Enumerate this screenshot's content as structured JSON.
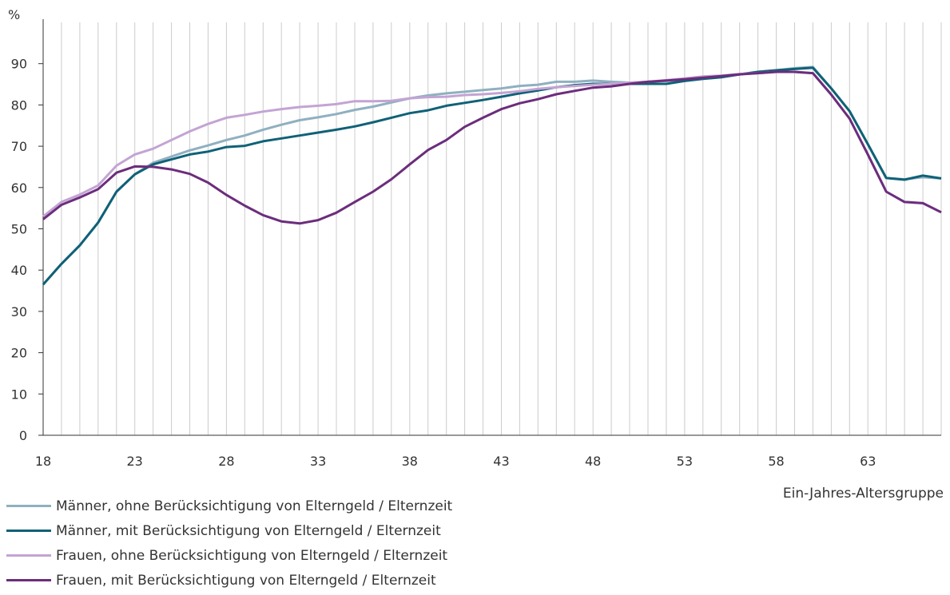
{
  "chart_data": {
    "type": "line",
    "ylabel": "%",
    "xlabel": "Ein-Jahres-Altersgruppe",
    "ylim": [
      0,
      100
    ],
    "xlim": [
      18,
      67
    ],
    "yticks": [
      0,
      10,
      20,
      30,
      40,
      50,
      60,
      70,
      80,
      90
    ],
    "xticks": [
      18,
      23,
      28,
      33,
      38,
      43,
      48,
      53,
      58,
      63
    ],
    "grid": "vertical lines at each age, horizontal tick marks",
    "legend_position": "bottom-left",
    "x": [
      18,
      19,
      20,
      21,
      22,
      23,
      24,
      25,
      26,
      27,
      28,
      29,
      30,
      31,
      32,
      33,
      34,
      35,
      36,
      37,
      38,
      39,
      40,
      41,
      42,
      43,
      44,
      45,
      46,
      47,
      48,
      49,
      50,
      51,
      52,
      53,
      54,
      55,
      56,
      57,
      58,
      59,
      60,
      61,
      62,
      63,
      64,
      65,
      66,
      67
    ],
    "series": [
      {
        "name": "Männer, ohne Berücksichtigung von Elterngeld / Elternzeit",
        "color": "#8fb0c0",
        "values": [
          36.5,
          41.5,
          46,
          51.5,
          59,
          63.2,
          66,
          67.5,
          69,
          70.2,
          71.5,
          72.6,
          74,
          75.2,
          76.3,
          77,
          77.8,
          78.8,
          79.6,
          80.6,
          81.6,
          82.3,
          82.8,
          83.2,
          83.6,
          84,
          84.6,
          84.9,
          85.6,
          85.6,
          85.9,
          85.6,
          85.4,
          85.6,
          85.8,
          86.1,
          86.5,
          87,
          87.4,
          88,
          88.4,
          88.9,
          89.2,
          84,
          78.5,
          70.5,
          62.3,
          62,
          62.5,
          62.2
        ]
      },
      {
        "name": "Männer, mit Berücksichtigung von Elterngeld / Elternzeit",
        "color": "#0f6177",
        "values": [
          36.5,
          41.5,
          46,
          51.5,
          59,
          63.2,
          65.6,
          66.8,
          68,
          68.7,
          69.8,
          70.1,
          71.2,
          71.9,
          72.6,
          73.3,
          74,
          74.8,
          75.8,
          76.9,
          78,
          78.7,
          79.8,
          80.5,
          81.2,
          82,
          82.8,
          83.5,
          84.3,
          84.8,
          85.1,
          85.1,
          85.1,
          85.1,
          85.1,
          85.8,
          86.3,
          86.7,
          87.4,
          88,
          88.4,
          88.7,
          89,
          84,
          78.5,
          70.5,
          62.3,
          61.9,
          62.9,
          62.2
        ]
      },
      {
        "name": "Frauen, ohne Berücksichtigung von Elterngeld / Elternzeit",
        "color": "#c3a4d3",
        "values": [
          53,
          56.5,
          58.3,
          60.5,
          65.3,
          68,
          69.4,
          71.5,
          73.6,
          75.4,
          76.9,
          77.6,
          78.4,
          79,
          79.5,
          79.8,
          80.2,
          80.9,
          80.9,
          81,
          81.6,
          81.9,
          82,
          82.4,
          82.6,
          82.9,
          83.3,
          83.9,
          84.3,
          84.6,
          84.9,
          85.1,
          85.4,
          85.6,
          86,
          86.4,
          86.9,
          87.1,
          87.5,
          87.7,
          88,
          88,
          87.7,
          82.5,
          76.7,
          68,
          59,
          56.5,
          56.2,
          54
        ]
      },
      {
        "name": "Frauen, mit Berücksichtigung von Elterngeld / Elternzeit",
        "color": "#6c2d7c",
        "values": [
          52.3,
          55.8,
          57.6,
          59.6,
          63.6,
          65.1,
          65,
          64.4,
          63.3,
          61.2,
          58.2,
          55.6,
          53.3,
          51.8,
          51.3,
          52.1,
          53.9,
          56.5,
          59,
          62,
          65.6,
          69.1,
          71.5,
          74.7,
          76.9,
          79,
          80.4,
          81.4,
          82.6,
          83.4,
          84.2,
          84.5,
          85.1,
          85.6,
          85.9,
          86.2,
          86.6,
          87,
          87.4,
          87.7,
          88,
          88,
          87.7,
          82.5,
          76.7,
          68,
          59,
          56.5,
          56.2,
          54
        ]
      }
    ]
  }
}
